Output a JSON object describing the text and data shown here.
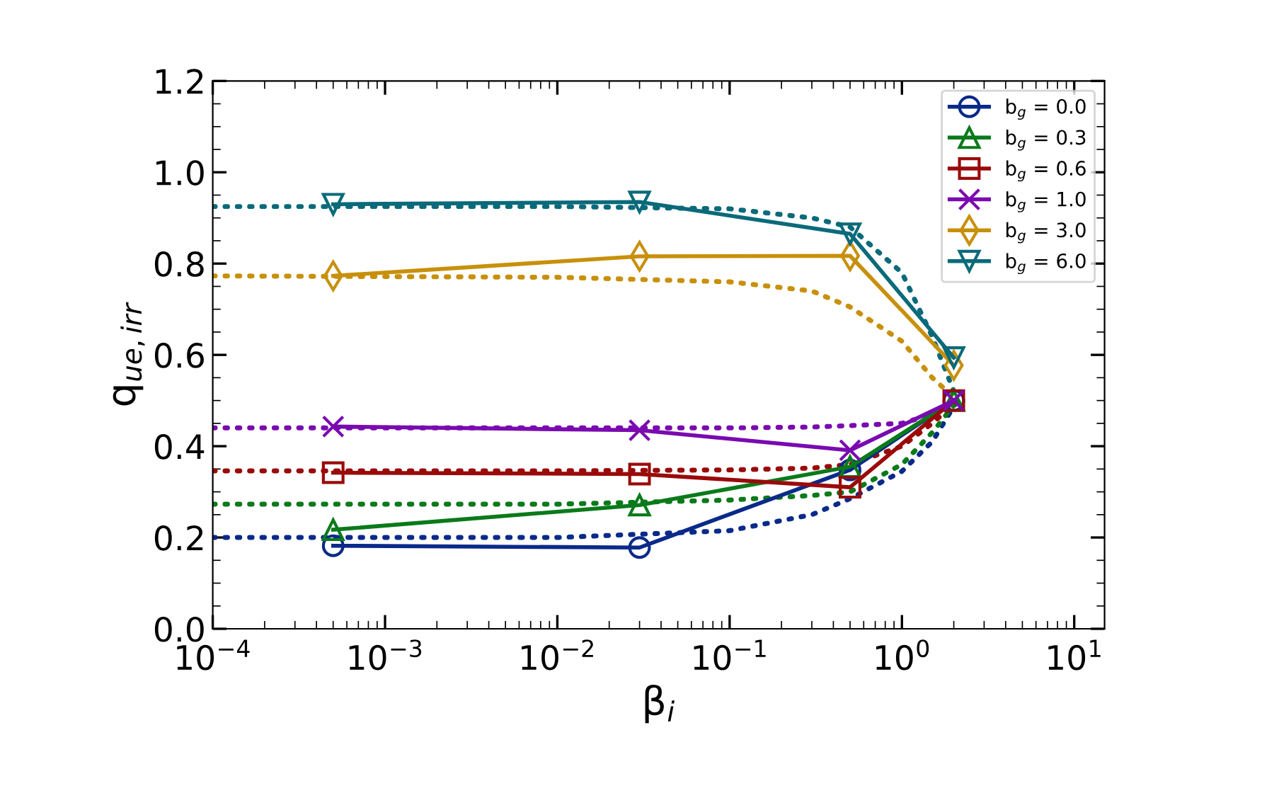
{
  "chart_data": {
    "type": "line",
    "xlabel": "β$_{i}$",
    "ylabel": "q$_{ue,irr}$",
    "log": "x",
    "xlim": [
      0.0001,
      15
    ],
    "xticks": [
      {
        "value": 0.0001,
        "label": "10$^{−4}$"
      },
      {
        "value": 0.001,
        "label": "10$^{−3}$"
      },
      {
        "value": 0.01,
        "label": "10$^{−2}$"
      },
      {
        "value": 0.1,
        "label": "10$^{−1}$"
      },
      {
        "value": 1,
        "label": "10$^{0}$"
      },
      {
        "value": 10,
        "label": "10$^{1}$"
      }
    ],
    "ylim": [
      0,
      1.2
    ],
    "yticks": [
      {
        "value": 0,
        "label": "0.0"
      },
      {
        "value": 0.2,
        "label": "0.2"
      },
      {
        "value": 0.4,
        "label": "0.4"
      },
      {
        "value": 0.6,
        "label": "0.6"
      },
      {
        "value": 0.8,
        "label": "0.8"
      },
      {
        "value": 1.0,
        "label": "1.0"
      },
      {
        "value": 1.2,
        "label": "1.2"
      }
    ],
    "grid": false,
    "legend": "top right",
    "series": [
      {
        "name": "b$_{g}$ = 0.0",
        "color": "#0a2a8a",
        "marker": "circle",
        "line_style": "solid",
        "x": [
          0.0005,
          0.03,
          0.5,
          2
        ],
        "values": [
          0.182,
          0.178,
          0.348,
          0.5
        ]
      },
      {
        "name": "b$_{g}$ = 0.3",
        "color": "#0a7a1a",
        "marker": "triangle",
        "line_style": "solid",
        "x": [
          0.0005,
          0.03,
          0.5,
          2
        ],
        "values": [
          0.217,
          0.271,
          0.355,
          0.5
        ]
      },
      {
        "name": "b$_{g}$ = 0.6",
        "color": "#9a0a0a",
        "marker": "square",
        "line_style": "solid",
        "x": [
          0.0005,
          0.03,
          0.5,
          2
        ],
        "values": [
          0.342,
          0.339,
          0.31,
          0.5
        ]
      },
      {
        "name": "b$_{g}$ = 1.0",
        "color": "#7a0ab0",
        "marker": "cross",
        "line_style": "solid",
        "x": [
          0.0005,
          0.03,
          0.5,
          2
        ],
        "values": [
          0.443,
          0.435,
          0.391,
          0.5
        ]
      },
      {
        "name": "b$_{g}$ = 3.0",
        "color": "#c8900a",
        "marker": "diamond",
        "line_style": "solid",
        "x": [
          0.0005,
          0.03,
          0.5,
          2
        ],
        "values": [
          0.773,
          0.816,
          0.817,
          0.577
        ]
      },
      {
        "name": "b$_{g}$ = 6.0",
        "color": "#0a6a7a",
        "marker": "triangle_down",
        "line_style": "solid",
        "x": [
          0.0005,
          0.03,
          0.5,
          2
        ],
        "values": [
          0.93,
          0.935,
          0.865,
          0.594
        ]
      },
      {
        "color": "#0a2a8a",
        "marker": "none",
        "line_style": "dotted",
        "x": [
          0.0001,
          0.01,
          0.1,
          0.3,
          0.5,
          1,
          1.5,
          2.1
        ],
        "values": [
          0.2,
          0.2,
          0.215,
          0.25,
          0.285,
          0.345,
          0.41,
          0.5
        ]
      },
      {
        "color": "#0a7a1a",
        "marker": "none",
        "line_style": "dotted",
        "x": [
          0.0001,
          0.01,
          0.1,
          0.3,
          0.5,
          1,
          1.5,
          2.1
        ],
        "values": [
          0.273,
          0.273,
          0.282,
          0.292,
          0.3,
          0.36,
          0.43,
          0.5
        ]
      },
      {
        "color": "#9a0a0a",
        "marker": "none",
        "line_style": "dotted",
        "x": [
          0.0001,
          0.01,
          0.1,
          0.3,
          0.5,
          1,
          1.5,
          2.1
        ],
        "values": [
          0.346,
          0.346,
          0.348,
          0.352,
          0.36,
          0.4,
          0.45,
          0.5
        ]
      },
      {
        "color": "#7a0ab0",
        "marker": "none",
        "line_style": "dotted",
        "x": [
          0.0001,
          0.01,
          0.1,
          0.3,
          0.5,
          1,
          1.5,
          2.1
        ],
        "values": [
          0.44,
          0.44,
          0.44,
          0.442,
          0.445,
          0.45,
          0.47,
          0.5
        ]
      },
      {
        "color": "#c8900a",
        "marker": "none",
        "line_style": "dotted",
        "x": [
          0.0001,
          0.01,
          0.1,
          0.3,
          0.5,
          1,
          1.5,
          2.1
        ],
        "values": [
          0.773,
          0.77,
          0.76,
          0.74,
          0.705,
          0.63,
          0.55,
          0.5
        ]
      },
      {
        "color": "#0a6a7a",
        "marker": "none",
        "line_style": "dotted",
        "x": [
          0.0001,
          0.01,
          0.1,
          0.3,
          0.5,
          1,
          1.5,
          2.1
        ],
        "values": [
          0.925,
          0.925,
          0.92,
          0.9,
          0.88,
          0.78,
          0.64,
          0.5
        ]
      }
    ]
  }
}
